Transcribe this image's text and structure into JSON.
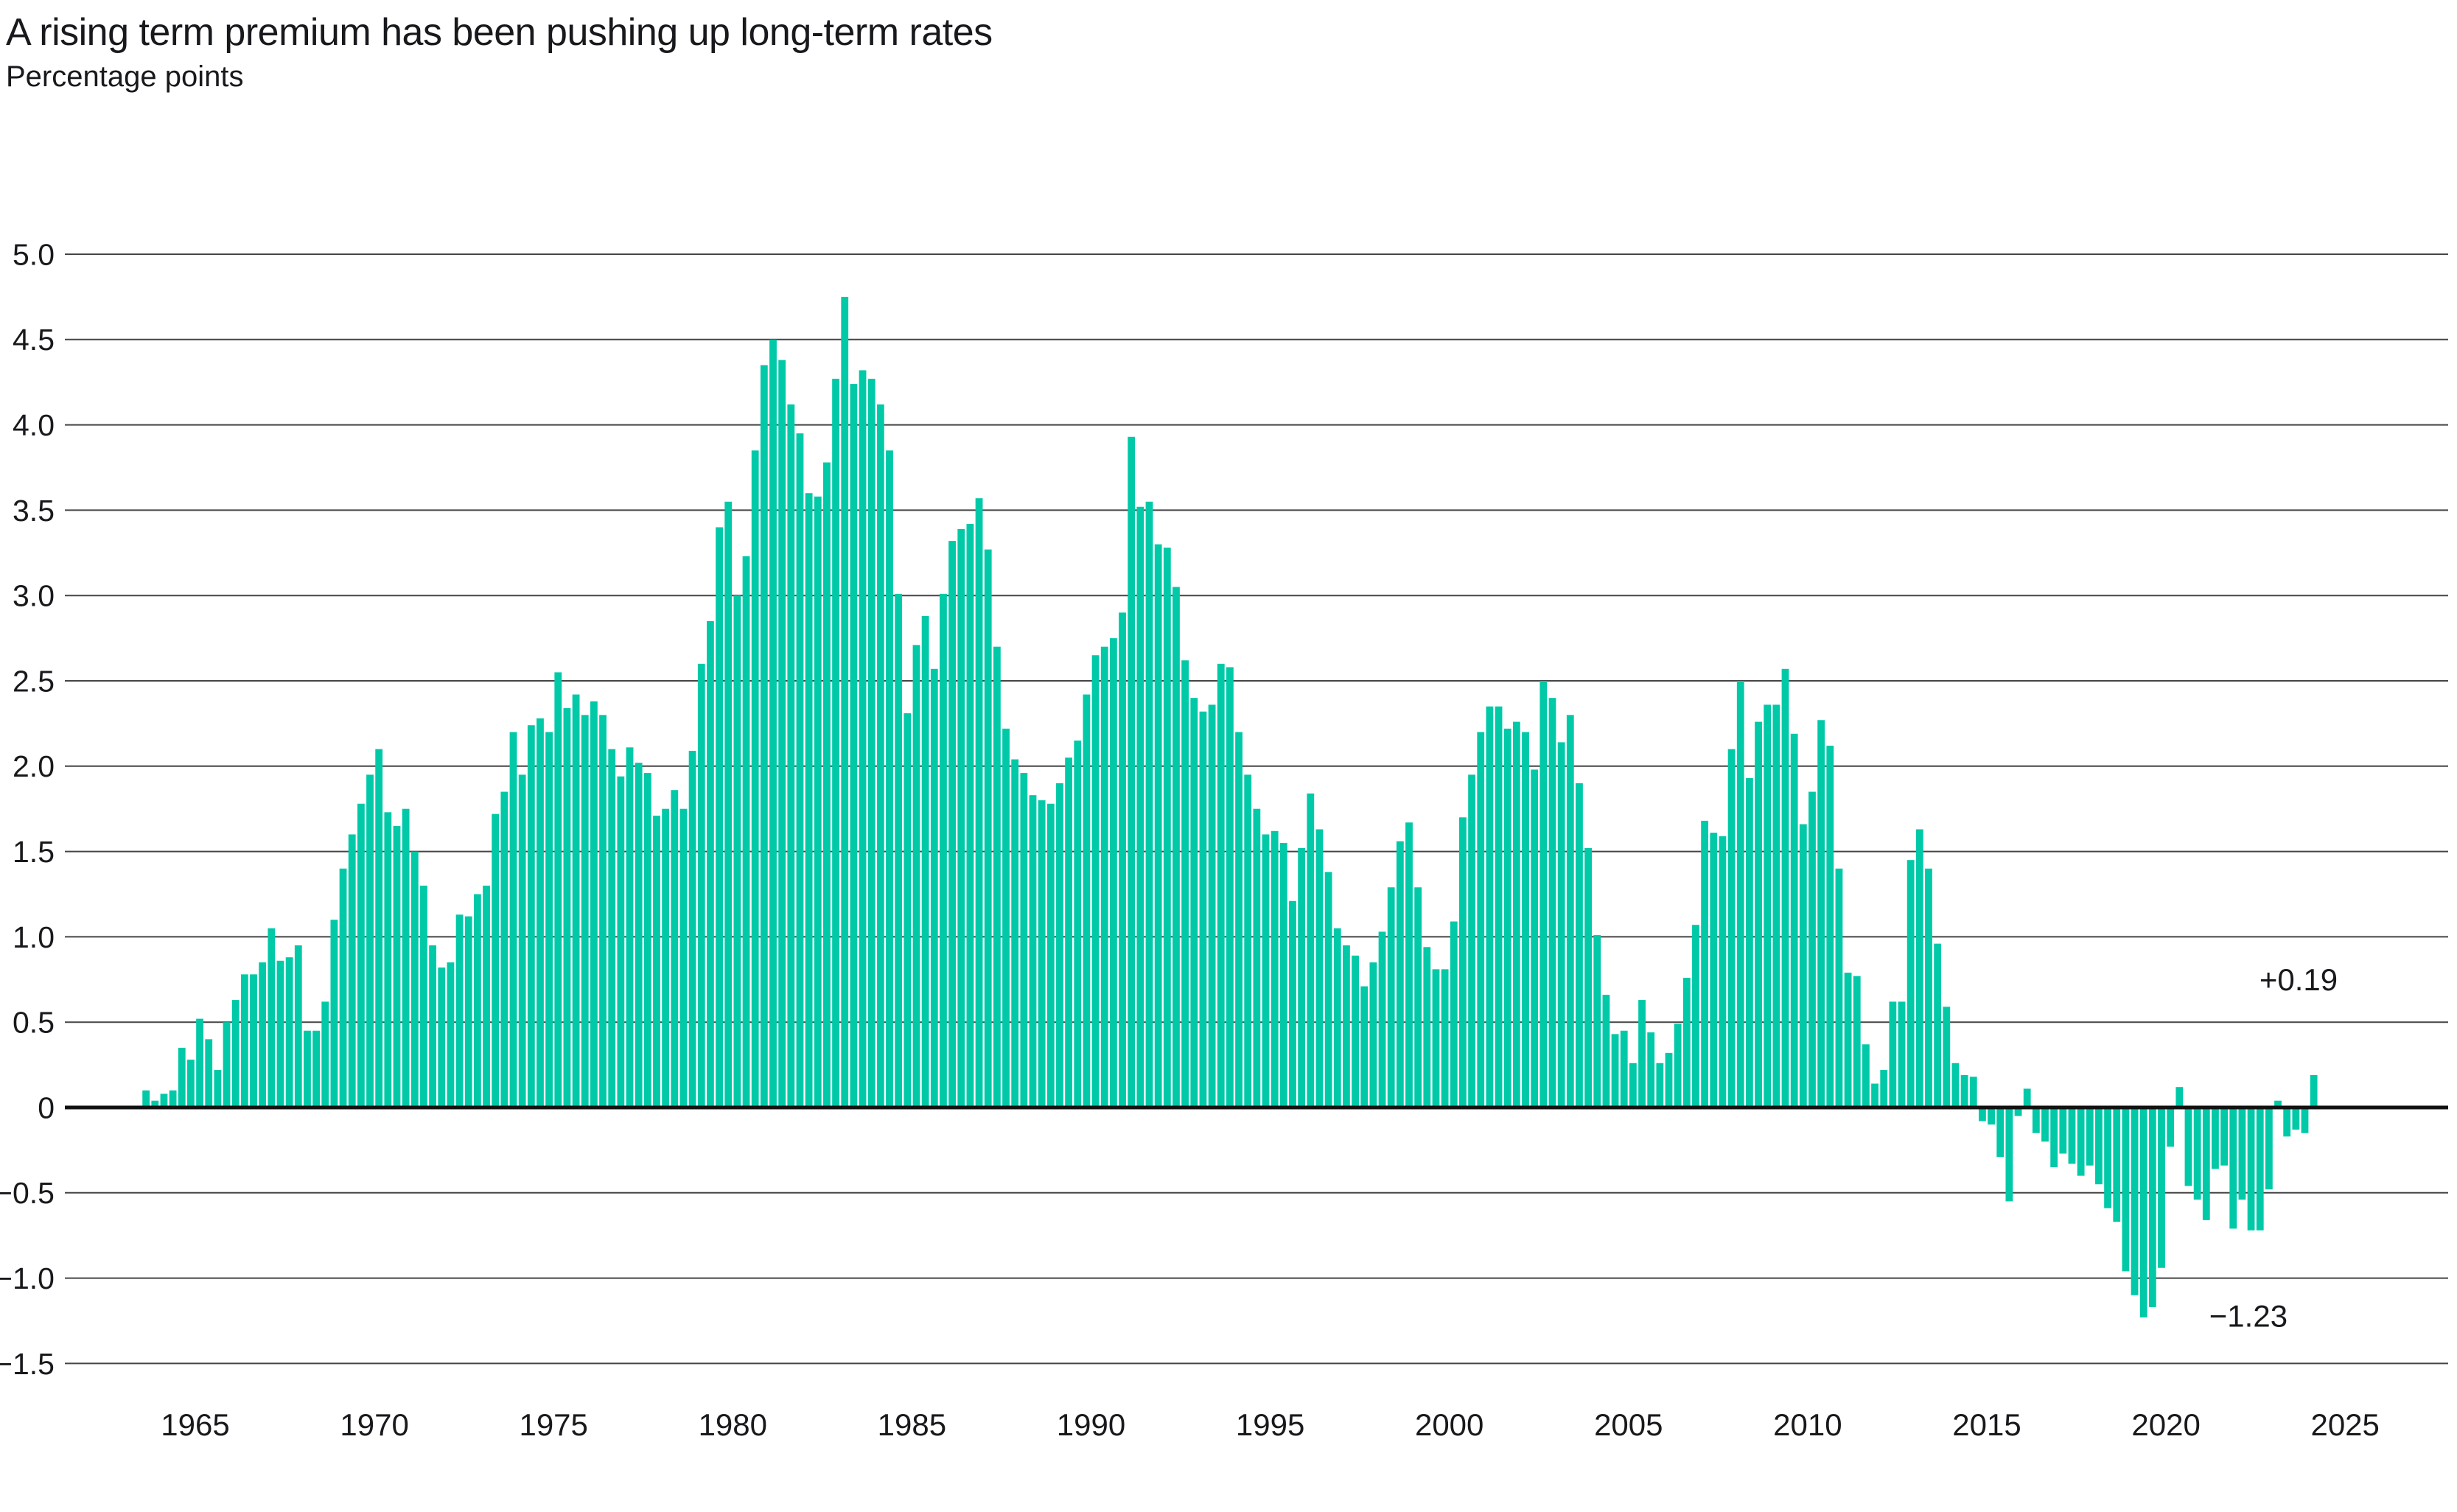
{
  "header": {
    "title": "A rising term premium has been pushing up long-term rates",
    "subtitle": "Percentage points"
  },
  "chart_data": {
    "type": "bar",
    "title": "A rising term premium has been pushing up long-term rates",
    "ylabel": "Percentage points",
    "frequency": "quarterly",
    "start_period": "1963 Q3",
    "end_period": "2024 Q1",
    "start_year_fraction": 1963.625,
    "bar_color": "#00C9A8",
    "background_color": "#ffffff",
    "gridline_color": "#454545",
    "zero_line_color": "#111111",
    "text_color": "#17191c",
    "grid": true,
    "legend": "none",
    "ylim": [
      -1.5,
      5.0
    ],
    "y_ticks": [
      5.0,
      4.5,
      4.0,
      3.5,
      3.0,
      2.5,
      2.0,
      1.5,
      1.0,
      0.5,
      0,
      -0.5,
      -1.0,
      -1.5
    ],
    "y_tick_labels": [
      "5.0",
      "4.5",
      "4.0",
      "3.5",
      "3.0",
      "2.5",
      "2.0",
      "1.5",
      "1.0",
      "0.5",
      "0",
      "−0.5",
      "−1.0",
      "−1.5"
    ],
    "x_tick_years": [
      1965,
      1970,
      1975,
      1980,
      1985,
      1990,
      1995,
      2000,
      2005,
      2010,
      2015,
      2020,
      2025
    ],
    "annotations": [
      {
        "text": "+0.19",
        "meaning": "latest value, 2024 Q1",
        "x_year": 2023.7,
        "y_value": 0.75
      },
      {
        "text": "−1.23",
        "meaning": "minimum value, 2019",
        "x_year": 2022.3,
        "y_value": -1.22
      }
    ],
    "values": [
      0.1,
      0.04,
      0.08,
      0.1,
      0.35,
      0.28,
      0.52,
      0.4,
      0.22,
      0.5,
      0.63,
      0.78,
      0.78,
      0.85,
      1.05,
      0.86,
      0.88,
      0.95,
      0.45,
      0.45,
      0.62,
      1.1,
      1.4,
      1.6,
      1.78,
      1.95,
      2.1,
      1.73,
      1.65,
      1.75,
      1.5,
      1.3,
      0.95,
      0.82,
      0.85,
      1.13,
      1.12,
      1.25,
      1.3,
      1.72,
      1.85,
      2.2,
      1.95,
      2.24,
      2.28,
      2.2,
      2.55,
      2.34,
      2.42,
      2.3,
      2.38,
      2.3,
      2.1,
      1.94,
      2.11,
      2.02,
      1.96,
      1.71,
      1.75,
      1.86,
      1.75,
      2.09,
      2.6,
      2.85,
      3.4,
      3.55,
      3.0,
      3.23,
      3.85,
      4.35,
      4.5,
      4.38,
      4.12,
      3.95,
      3.6,
      3.58,
      3.78,
      4.27,
      4.75,
      4.24,
      4.32,
      4.27,
      4.12,
      3.85,
      3.01,
      2.31,
      2.71,
      2.88,
      2.57,
      3.01,
      3.32,
      3.39,
      3.42,
      3.57,
      3.27,
      2.7,
      2.22,
      2.04,
      1.96,
      1.83,
      1.8,
      1.78,
      1.9,
      2.05,
      2.15,
      2.42,
      2.65,
      2.7,
      2.75,
      2.9,
      3.93,
      3.52,
      3.55,
      3.3,
      3.28,
      3.05,
      2.62,
      2.4,
      2.32,
      2.36,
      2.6,
      2.58,
      2.2,
      1.95,
      1.75,
      1.6,
      1.62,
      1.55,
      1.21,
      1.52,
      1.84,
      1.63,
      1.38,
      1.05,
      0.95,
      0.89,
      0.71,
      0.85,
      1.03,
      1.29,
      1.56,
      1.67,
      1.29,
      0.94,
      0.81,
      0.81,
      1.09,
      1.7,
      1.95,
      2.2,
      2.35,
      2.35,
      2.22,
      2.26,
      2.2,
      1.98,
      2.5,
      2.4,
      2.14,
      2.3,
      1.9,
      1.52,
      1.01,
      0.66,
      0.43,
      0.45,
      0.26,
      0.63,
      0.44,
      0.26,
      0.32,
      0.49,
      0.76,
      1.07,
      1.68,
      1.61,
      1.59,
      2.1,
      2.5,
      1.93,
      2.26,
      2.36,
      2.36,
      2.57,
      2.19,
      1.66,
      1.85,
      2.27,
      2.12,
      1.4,
      0.79,
      0.77,
      0.37,
      0.14,
      0.22,
      0.62,
      0.62,
      1.45,
      1.63,
      1.4,
      0.96,
      0.59,
      0.26,
      0.19,
      0.18,
      -0.08,
      -0.1,
      -0.29,
      -0.55,
      -0.05,
      0.11,
      -0.15,
      -0.2,
      -0.35,
      -0.27,
      -0.33,
      -0.4,
      -0.34,
      -0.45,
      -0.59,
      -0.67,
      -0.96,
      -1.1,
      -1.23,
      -1.17,
      -0.94,
      -0.23,
      0.12,
      -0.46,
      -0.54,
      -0.66,
      -0.36,
      -0.34,
      -0.71,
      -0.54,
      -0.72,
      -0.72,
      -0.48,
      0.04,
      -0.17,
      -0.13,
      -0.15,
      0.19
    ]
  }
}
